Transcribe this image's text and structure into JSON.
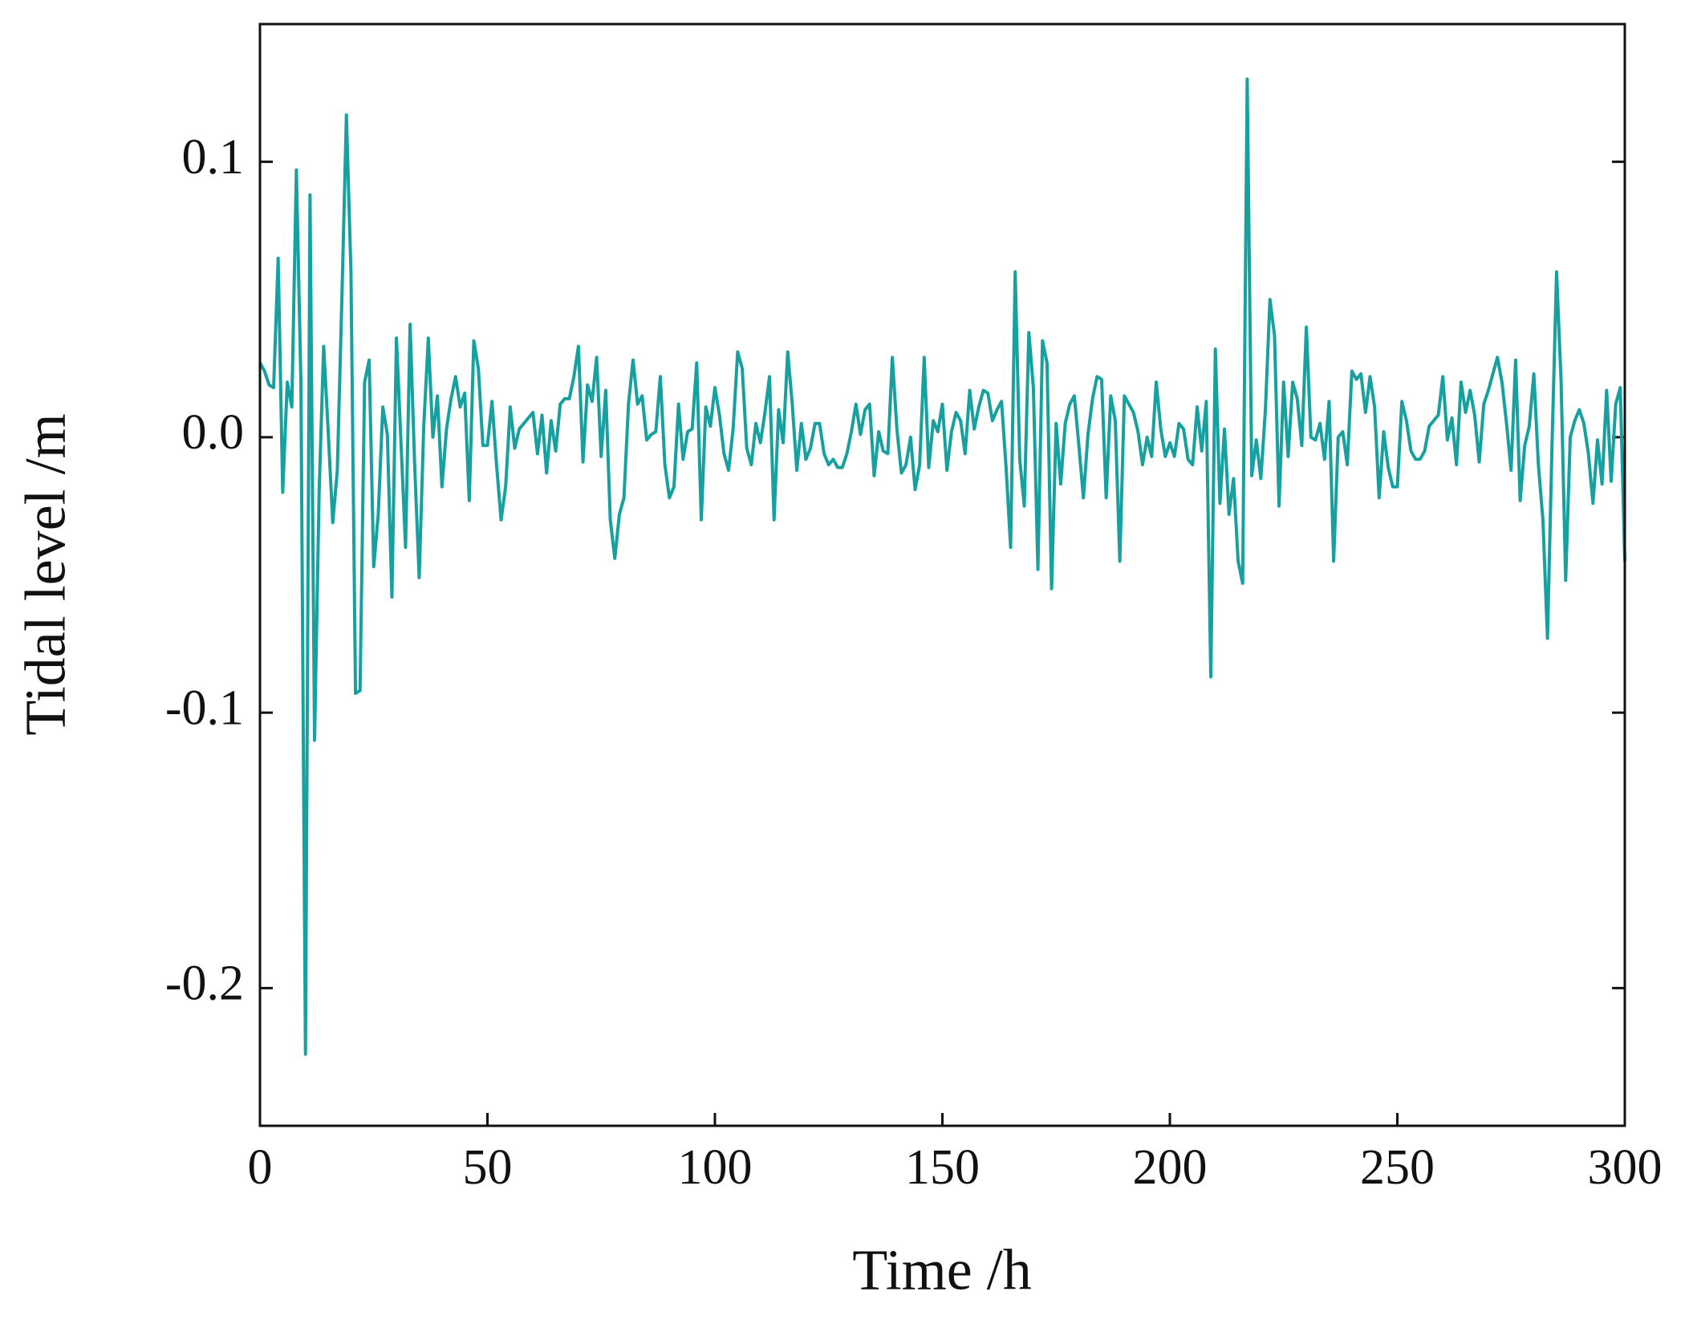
{
  "chart_data": {
    "type": "line",
    "xlabel": "Time /h",
    "ylabel": "Tidal level /m",
    "xlim": [
      0,
      300
    ],
    "ylim": [
      -0.25,
      0.15
    ],
    "xticks": [
      0,
      50,
      100,
      150,
      200,
      250,
      300
    ],
    "yticks": [
      -0.2,
      -0.1,
      {
        "value": 0,
        "label": "0.0"
      },
      0.1
    ],
    "series": [
      {
        "color": "#17a0a0",
        "x": [
          0,
          1,
          2,
          3,
          4,
          5,
          6,
          7,
          8,
          9,
          10,
          11,
          12,
          13,
          14,
          15,
          16,
          17,
          18,
          19,
          20,
          21,
          22,
          23,
          24,
          25,
          26,
          27,
          28,
          29,
          30,
          31,
          32,
          33,
          34,
          35,
          36,
          37,
          38,
          39,
          40,
          41,
          42,
          43,
          44,
          45,
          46,
          47,
          48,
          49,
          50,
          51,
          52,
          53,
          54,
          55,
          56,
          57,
          58,
          59,
          60,
          61,
          62,
          63,
          64,
          65,
          66,
          67,
          68,
          69,
          70,
          71,
          72,
          73,
          74,
          75,
          76,
          77,
          78,
          79,
          80,
          81,
          82,
          83,
          84,
          85,
          86,
          87,
          88,
          89,
          90,
          91,
          92,
          93,
          94,
          95,
          96,
          97,
          98,
          99,
          100,
          101,
          102,
          103,
          104,
          105,
          106,
          107,
          108,
          109,
          110,
          111,
          112,
          113,
          114,
          115,
          116,
          117,
          118,
          119,
          120,
          121,
          122,
          123,
          124,
          125,
          126,
          127,
          128,
          129,
          130,
          131,
          132,
          133,
          134,
          135,
          136,
          137,
          138,
          139,
          140,
          141,
          142,
          143,
          144,
          145,
          146,
          147,
          148,
          149,
          150,
          151,
          152,
          153,
          154,
          155,
          156,
          157,
          158,
          159,
          160,
          161,
          162,
          163,
          164,
          165,
          166,
          167,
          168,
          169,
          170,
          171,
          172,
          173,
          174,
          175,
          176,
          177,
          178,
          179,
          180,
          181,
          182,
          183,
          184,
          185,
          186,
          187,
          188,
          189,
          190,
          191,
          192,
          193,
          194,
          195,
          196,
          197,
          198,
          199,
          200,
          201,
          202,
          203,
          204,
          205,
          206,
          207,
          208,
          209,
          210,
          211,
          212,
          213,
          214,
          215,
          216,
          217,
          218,
          219,
          220,
          221,
          222,
          223,
          224,
          225,
          226,
          227,
          228,
          229,
          230,
          231,
          232,
          233,
          234,
          235,
          236,
          237,
          238,
          239,
          240,
          241,
          242,
          243,
          244,
          245,
          246,
          247,
          248,
          249,
          250,
          251,
          252,
          253,
          254,
          255,
          256,
          257,
          258,
          259,
          260,
          261,
          262,
          263,
          264,
          265,
          266,
          267,
          268,
          269,
          270,
          271,
          272,
          273,
          274,
          275,
          276,
          277,
          278,
          279,
          280,
          281,
          282,
          283,
          284,
          285,
          286,
          287,
          288,
          289,
          290,
          291,
          292,
          293,
          294,
          295,
          296,
          297,
          298,
          299,
          300
        ],
        "values": [
          0.027,
          0.024,
          0.019,
          0.018,
          0.065,
          -0.02,
          0.02,
          0.011,
          0.097,
          0.02,
          -0.224,
          0.088,
          -0.11,
          -0.02,
          0.033,
          0.002,
          -0.031,
          -0.012,
          0.05,
          0.117,
          0.06,
          -0.093,
          -0.092,
          0.02,
          0.028,
          -0.047,
          -0.028,
          0.011,
          0.001,
          -0.058,
          0.036,
          -0.002,
          -0.04,
          0.041,
          -0.01,
          -0.051,
          0.004,
          0.036,
          0.0,
          0.015,
          -0.018,
          0.003,
          0.014,
          0.022,
          0.011,
          0.016,
          -0.023,
          0.035,
          0.025,
          -0.003,
          -0.003,
          0.013,
          -0.01,
          -0.03,
          -0.018,
          0.011,
          -0.004,
          0.003,
          0.005,
          0.007,
          0.009,
          -0.006,
          0.008,
          -0.013,
          0.006,
          -0.005,
          0.012,
          0.014,
          0.014,
          0.022,
          0.033,
          -0.009,
          0.019,
          0.013,
          0.029,
          -0.007,
          0.017,
          -0.03,
          -0.044,
          -0.028,
          -0.022,
          0.012,
          0.028,
          0.012,
          0.015,
          -0.001,
          0.001,
          0.002,
          0.022,
          -0.01,
          -0.022,
          -0.018,
          0.012,
          -0.008,
          0.002,
          0.003,
          0.027,
          -0.03,
          0.011,
          0.004,
          0.018,
          0.008,
          -0.006,
          -0.012,
          0.003,
          0.031,
          0.025,
          -0.004,
          -0.01,
          0.005,
          -0.002,
          0.009,
          0.022,
          -0.03,
          0.01,
          -0.002,
          0.031,
          0.012,
          -0.012,
          0.005,
          -0.008,
          -0.004,
          0.005,
          0.005,
          -0.006,
          -0.01,
          -0.008,
          -0.011,
          -0.011,
          -0.006,
          0.002,
          0.012,
          0.001,
          0.01,
          0.012,
          -0.014,
          0.002,
          -0.005,
          -0.006,
          0.029,
          0.003,
          -0.013,
          -0.01,
          0.0,
          -0.019,
          -0.01,
          0.029,
          -0.011,
          0.006,
          0.002,
          0.012,
          -0.012,
          0.002,
          0.009,
          0.006,
          -0.006,
          0.017,
          0.003,
          0.011,
          0.017,
          0.016,
          0.006,
          0.01,
          0.013,
          -0.011,
          -0.04,
          0.06,
          -0.008,
          -0.025,
          0.038,
          0.018,
          -0.048,
          0.035,
          0.027,
          -0.055,
          0.005,
          -0.017,
          0.005,
          0.012,
          0.015,
          -0.003,
          -0.022,
          0.001,
          0.014,
          0.022,
          0.021,
          -0.022,
          0.015,
          0.006,
          -0.045,
          0.015,
          0.012,
          0.009,
          0.002,
          -0.01,
          0.0,
          -0.007,
          0.02,
          0.003,
          -0.007,
          -0.002,
          -0.007,
          0.005,
          0.003,
          -0.008,
          -0.01,
          0.011,
          -0.005,
          0.013,
          -0.087,
          0.032,
          -0.024,
          0.003,
          -0.028,
          -0.015,
          -0.045,
          -0.053,
          0.13,
          -0.014,
          -0.001,
          -0.015,
          0.01,
          0.05,
          0.037,
          -0.025,
          0.02,
          -0.007,
          0.02,
          0.014,
          -0.003,
          0.04,
          0.0,
          -0.001,
          0.005,
          -0.008,
          0.013,
          -0.045,
          0.0,
          0.002,
          -0.01,
          0.024,
          0.021,
          0.023,
          0.009,
          0.022,
          0.011,
          -0.022,
          0.002,
          -0.011,
          -0.018,
          -0.018,
          0.013,
          0.006,
          -0.005,
          -0.008,
          -0.008,
          -0.005,
          0.004,
          0.006,
          0.008,
          0.022,
          -0.001,
          0.007,
          -0.01,
          0.02,
          0.009,
          0.017,
          0.008,
          -0.009,
          0.012,
          0.017,
          0.023,
          0.029,
          0.02,
          0.005,
          -0.012,
          0.028,
          -0.023,
          -0.003,
          0.004,
          0.023,
          -0.01,
          -0.03,
          -0.073,
          -0.003,
          0.06,
          0.02,
          -0.052,
          0.0,
          0.006,
          0.01,
          0.005,
          -0.006,
          -0.024,
          -0.001,
          -0.017,
          0.017,
          -0.016,
          0.012,
          0.018,
          -0.045
        ]
      }
    ]
  }
}
